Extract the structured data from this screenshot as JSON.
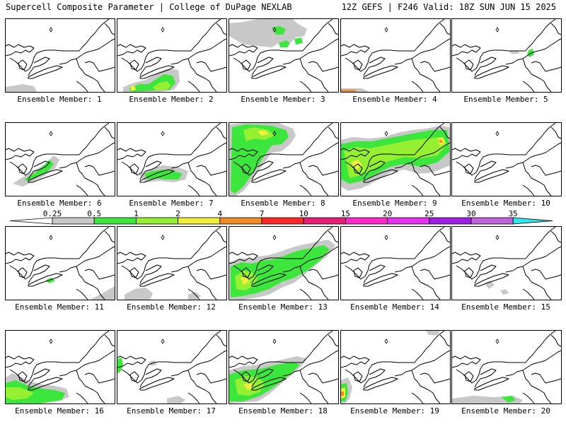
{
  "header": {
    "left": "Supercell Composite Parameter | College of DuPage NEXLAB",
    "right": "12Z GEFS | F246 Valid: 18Z SUN JUN 15 2025"
  },
  "label_prefix": "Ensemble Member: ",
  "colorbar": {
    "levels": [
      "0.25",
      "0.5",
      "1",
      "2",
      "4",
      "7",
      "10",
      "15",
      "20",
      "25",
      "30",
      "35"
    ],
    "colors": [
      "#c8c8c8",
      "#3ce63c",
      "#96f032",
      "#f0f03c",
      "#f08c28",
      "#ff2828",
      "#e61e78",
      "#ff28c8",
      "#e632f0",
      "#a01ee6",
      "#be64dc",
      "#32e6f0"
    ]
  },
  "members": [
    {
      "n": 1,
      "coverage": "minimal"
    },
    {
      "n": 2,
      "coverage": "light"
    },
    {
      "n": 3,
      "coverage": "light"
    },
    {
      "n": 4,
      "coverage": "minimal"
    },
    {
      "n": 5,
      "coverage": "minimal"
    },
    {
      "n": 6,
      "coverage": "light"
    },
    {
      "n": 7,
      "coverage": "light"
    },
    {
      "n": 8,
      "coverage": "widespread"
    },
    {
      "n": 9,
      "coverage": "widespread"
    },
    {
      "n": 10,
      "coverage": "none"
    },
    {
      "n": 11,
      "coverage": "minimal"
    },
    {
      "n": 12,
      "coverage": "minimal"
    },
    {
      "n": 13,
      "coverage": "widespread"
    },
    {
      "n": 14,
      "coverage": "none"
    },
    {
      "n": 15,
      "coverage": "minimal"
    },
    {
      "n": 16,
      "coverage": "light"
    },
    {
      "n": 17,
      "coverage": "minimal"
    },
    {
      "n": 18,
      "coverage": "widespread"
    },
    {
      "n": 19,
      "coverage": "minimal"
    },
    {
      "n": 20,
      "coverage": "minimal"
    }
  ]
}
